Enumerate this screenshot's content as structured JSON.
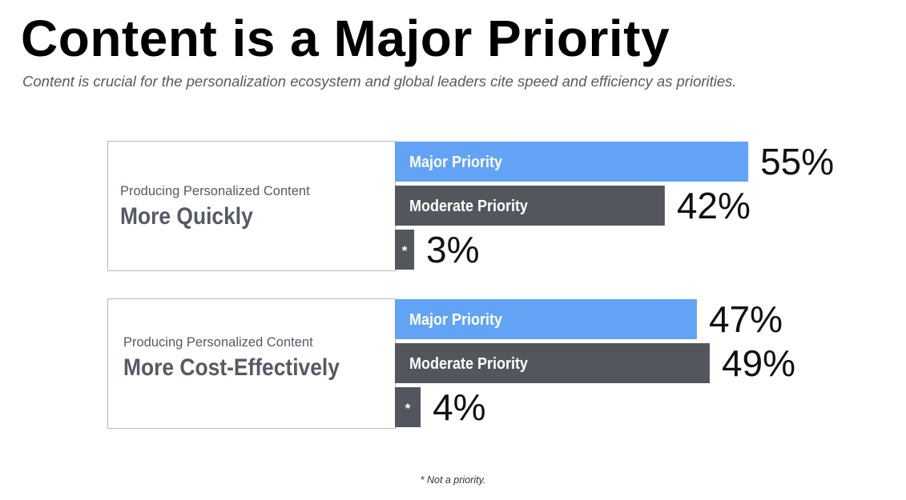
{
  "title": "Content is a Major Priority",
  "subtitle": "Content is crucial for the personalization ecosystem and global leaders cite speed and efficiency as priorities.",
  "footnote": "* Not a priority.",
  "colors": {
    "major": "#62a3f6",
    "moderate": "#54565e",
    "not_priority": "#54565e"
  },
  "chart_data": {
    "type": "bar",
    "orientation": "horizontal",
    "groups": [
      {
        "label_small": "Producing Personalized Content",
        "label_large": "More Quickly",
        "bars": [
          {
            "label": "Major Priority",
            "value": 55,
            "value_label": "55%"
          },
          {
            "label": "Moderate Priority",
            "value": 42,
            "value_label": "42%"
          },
          {
            "label": "*",
            "value": 3,
            "value_label": "3%"
          }
        ]
      },
      {
        "label_small": "Producing Personalized Content",
        "label_large": "More Cost-Effectively",
        "bars": [
          {
            "label": "Major Priority",
            "value": 47,
            "value_label": "47%"
          },
          {
            "label": "Moderate Priority",
            "value": 49,
            "value_label": "49%"
          },
          {
            "label": "*",
            "value": 4,
            "value_label": "4%"
          }
        ]
      }
    ]
  }
}
